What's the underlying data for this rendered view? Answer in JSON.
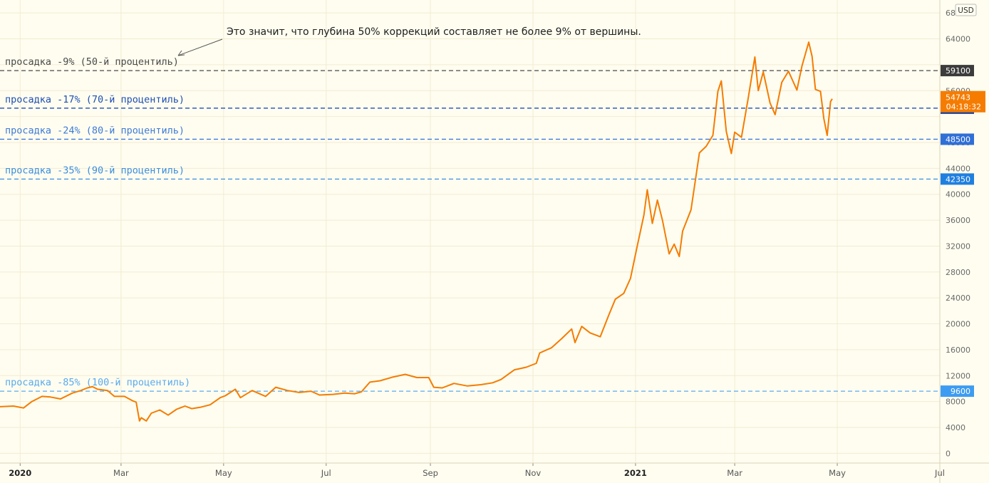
{
  "currency_label": "USD",
  "annotation": "Это значит, что глубина 50% коррекций составляет не более 9% от вершины.",
  "last_price": {
    "value": "54743",
    "countdown": "04:18:32",
    "color": "#f57c00"
  },
  "chart_data": {
    "type": "line",
    "x_range": [
      "2019-12-20",
      "2021-07-01"
    ],
    "ylim": [
      -1500,
      70000
    ],
    "y_ticks": [
      0,
      4000,
      8000,
      12000,
      16000,
      20000,
      24000,
      28000,
      32000,
      36000,
      40000,
      44000,
      48000,
      52000,
      56000,
      60000,
      64000,
      68000
    ],
    "y_tick_labels": [
      "0",
      "4000",
      "8000",
      "12000",
      "16000",
      "20000",
      "24000",
      "28000",
      "32000",
      "36000",
      "40000",
      "44000",
      "48000",
      "",
      "56000",
      "",
      "64000",
      "68000"
    ],
    "x_ticks": [
      {
        "date": "2020-01-01",
        "label": "2020",
        "bold": true
      },
      {
        "date": "2020-03-01",
        "label": "Mar"
      },
      {
        "date": "2020-05-01",
        "label": "May"
      },
      {
        "date": "2020-07-01",
        "label": "Jul"
      },
      {
        "date": "2020-09-01",
        "label": "Sep"
      },
      {
        "date": "2020-11-01",
        "label": "Nov"
      },
      {
        "date": "2021-01-01",
        "label": "2021",
        "bold": true
      },
      {
        "date": "2021-03-01",
        "label": "Mar"
      },
      {
        "date": "2021-05-01",
        "label": "May"
      },
      {
        "date": "2021-07-01",
        "label": "Jul"
      }
    ],
    "grid": true,
    "line_color": "#f57c00",
    "levels": [
      {
        "label": "просадка -9% (50-й процентиль)",
        "value": 59100,
        "value_label": "59100",
        "color": "#4a4a4a",
        "badge": "#3c3c3c"
      },
      {
        "label": "просадка -17% (70-й процентиль)",
        "value": 53300,
        "value_label": "53300",
        "color": "#1e4fb5",
        "badge": "#0d3a9e"
      },
      {
        "label": "просадка -24% (80-й процентиль)",
        "value": 48500,
        "value_label": "48500",
        "color": "#3d7bd9",
        "badge": "#2f6fd6"
      },
      {
        "label": "просадка -35% (90-й процентиль)",
        "value": 42350,
        "value_label": "42350",
        "color": "#3a8ee0",
        "badge": "#1f7fe0"
      },
      {
        "label": "просадка -85% (100-й процентиль)",
        "value": 9600,
        "value_label": "9600",
        "color": "#5aaaf0",
        "badge": "#3d9cf2"
      }
    ],
    "series": [
      {
        "points": [
          [
            "2019-12-20",
            7200
          ],
          [
            "2019-12-28",
            7300
          ],
          [
            "2020-01-03",
            7000
          ],
          [
            "2020-01-08",
            8000
          ],
          [
            "2020-01-14",
            8800
          ],
          [
            "2020-01-19",
            8700
          ],
          [
            "2020-01-25",
            8400
          ],
          [
            "2020-02-01",
            9300
          ],
          [
            "2020-02-06",
            9700
          ],
          [
            "2020-02-10",
            10100
          ],
          [
            "2020-02-13",
            10300
          ],
          [
            "2020-02-16",
            9900
          ],
          [
            "2020-02-22",
            9700
          ],
          [
            "2020-02-26",
            8800
          ],
          [
            "2020-03-03",
            8800
          ],
          [
            "2020-03-08",
            8100
          ],
          [
            "2020-03-10",
            7900
          ],
          [
            "2020-03-12",
            5000
          ],
          [
            "2020-03-13",
            5500
          ],
          [
            "2020-03-16",
            5000
          ],
          [
            "2020-03-19",
            6200
          ],
          [
            "2020-03-24",
            6700
          ],
          [
            "2020-03-29",
            5900
          ],
          [
            "2020-04-03",
            6800
          ],
          [
            "2020-04-08",
            7300
          ],
          [
            "2020-04-12",
            6900
          ],
          [
            "2020-04-17",
            7100
          ],
          [
            "2020-04-23",
            7500
          ],
          [
            "2020-04-29",
            8600
          ],
          [
            "2020-05-02",
            8900
          ],
          [
            "2020-05-08",
            9900
          ],
          [
            "2020-05-11",
            8600
          ],
          [
            "2020-05-18",
            9700
          ],
          [
            "2020-05-26",
            8800
          ],
          [
            "2020-06-01",
            10200
          ],
          [
            "2020-06-08",
            9700
          ],
          [
            "2020-06-15",
            9400
          ],
          [
            "2020-06-22",
            9600
          ],
          [
            "2020-06-27",
            9000
          ],
          [
            "2020-07-05",
            9100
          ],
          [
            "2020-07-12",
            9300
          ],
          [
            "2020-07-18",
            9200
          ],
          [
            "2020-07-22",
            9500
          ],
          [
            "2020-07-27",
            11000
          ],
          [
            "2020-08-02",
            11200
          ],
          [
            "2020-08-10",
            11800
          ],
          [
            "2020-08-17",
            12200
          ],
          [
            "2020-08-24",
            11700
          ],
          [
            "2020-08-31",
            11700
          ],
          [
            "2020-09-03",
            10200
          ],
          [
            "2020-09-08",
            10100
          ],
          [
            "2020-09-15",
            10800
          ],
          [
            "2020-09-23",
            10400
          ],
          [
            "2020-10-01",
            10600
          ],
          [
            "2020-10-08",
            10900
          ],
          [
            "2020-10-13",
            11400
          ],
          [
            "2020-10-21",
            12900
          ],
          [
            "2020-10-28",
            13300
          ],
          [
            "2020-11-03",
            13900
          ],
          [
            "2020-11-05",
            15500
          ],
          [
            "2020-11-12",
            16300
          ],
          [
            "2020-11-18",
            17700
          ],
          [
            "2020-11-24",
            19200
          ],
          [
            "2020-11-26",
            17100
          ],
          [
            "2020-11-30",
            19600
          ],
          [
            "2020-12-05",
            18600
          ],
          [
            "2020-12-11",
            18000
          ],
          [
            "2020-12-16",
            21300
          ],
          [
            "2020-12-20",
            23800
          ],
          [
            "2020-12-25",
            24700
          ],
          [
            "2020-12-29",
            27000
          ],
          [
            "2021-01-02",
            32000
          ],
          [
            "2021-01-06",
            36800
          ],
          [
            "2021-01-08",
            40700
          ],
          [
            "2021-01-11",
            35500
          ],
          [
            "2021-01-14",
            39100
          ],
          [
            "2021-01-17",
            36000
          ],
          [
            "2021-01-21",
            30800
          ],
          [
            "2021-01-24",
            32300
          ],
          [
            "2021-01-27",
            30400
          ],
          [
            "2021-01-29",
            34300
          ],
          [
            "2021-02-03",
            37600
          ],
          [
            "2021-02-08",
            46400
          ],
          [
            "2021-02-12",
            47400
          ],
          [
            "2021-02-16",
            49100
          ],
          [
            "2021-02-19",
            55900
          ],
          [
            "2021-02-21",
            57500
          ],
          [
            "2021-02-24",
            49700
          ],
          [
            "2021-02-27",
            46300
          ],
          [
            "2021-03-01",
            49600
          ],
          [
            "2021-03-05",
            48800
          ],
          [
            "2021-03-09",
            54800
          ],
          [
            "2021-03-13",
            61200
          ],
          [
            "2021-03-15",
            56000
          ],
          [
            "2021-03-18",
            58900
          ],
          [
            "2021-03-22",
            54100
          ],
          [
            "2021-03-25",
            52300
          ],
          [
            "2021-03-29",
            57300
          ],
          [
            "2021-04-02",
            59000
          ],
          [
            "2021-04-07",
            56100
          ],
          [
            "2021-04-10",
            59800
          ],
          [
            "2021-04-14",
            63500
          ],
          [
            "2021-04-16",
            61300
          ],
          [
            "2021-04-18",
            56200
          ],
          [
            "2021-04-21",
            55900
          ],
          [
            "2021-04-23",
            51700
          ],
          [
            "2021-04-25",
            49100
          ],
          [
            "2021-04-27",
            54300
          ],
          [
            "2021-04-28",
            54743
          ]
        ]
      }
    ]
  }
}
